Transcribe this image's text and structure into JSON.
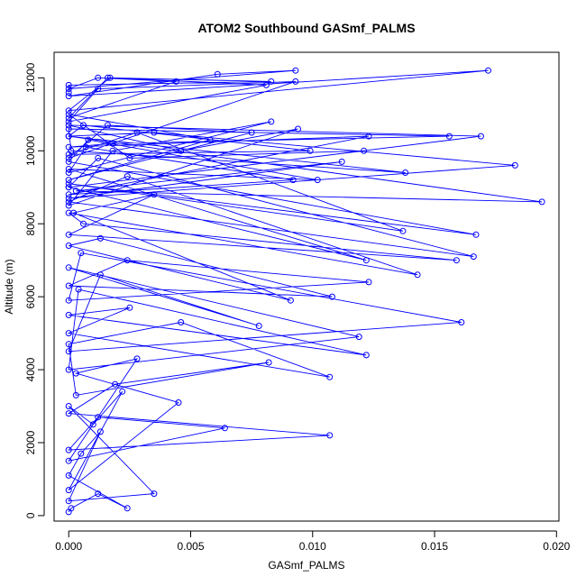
{
  "chart_data": {
    "type": "scatter",
    "title": "ATOM2 Southbound GASmf_PALMS",
    "xlabel": "GASmf_PALMS",
    "ylabel": "Altitude (m)",
    "xlim": [
      -0.0006,
      0.0201
    ],
    "ylim": [
      -150,
      12700
    ],
    "xticks": [
      0.0,
      0.005,
      0.01,
      0.015,
      0.02
    ],
    "xtick_labels": [
      "0.000",
      "0.005",
      "0.010",
      "0.015",
      "0.020"
    ],
    "yticks": [
      0,
      2000,
      4000,
      6000,
      8000,
      10000,
      12000
    ],
    "ytick_labels": [
      "0",
      "2000",
      "4000",
      "6000",
      "8000",
      "10000",
      "12000"
    ],
    "marker": "open-circle",
    "connected": true,
    "grid": false,
    "legend": "none",
    "colors": {
      "series": "#0000ff",
      "axes": "#000000",
      "background": "#ffffff"
    },
    "series": [
      {
        "x": [
          0.0,
          0.0001,
          0.0012,
          0.0024,
          0.0,
          0.0005,
          0.0013,
          0.0,
          0.0035,
          0.0,
          0.001,
          0.0022,
          0.0,
          0.0045,
          0.0003,
          0.0028,
          0.0,
          0.0064,
          0.0012,
          0.0,
          0.0107,
          0.0,
          0.0019,
          0.0082,
          0.0003,
          0.0,
          0.0046,
          0.0107,
          0.0,
          0.0025,
          0.0,
          0.0122,
          0.0004,
          0.0,
          0.0119,
          0.0,
          0.0078,
          0.0013,
          0.0,
          0.0161,
          0.0005,
          0.0,
          0.0123,
          0.0024,
          0.0,
          0.0108,
          0.0013,
          0.0,
          0.0091,
          0.0002,
          0.0035,
          0.0,
          0.0159,
          0.0006,
          0.0,
          0.0143,
          0.0024,
          0.0,
          0.0166,
          0.0012,
          0.0,
          0.0122,
          0.0,
          0.0102,
          0.0008,
          0.0,
          0.0167,
          0.0,
          0.0137,
          0.0028,
          0.0,
          0.0099,
          0.0006,
          0.0,
          0.0194,
          0.0003,
          0.0112,
          0.0,
          0.0183,
          0.0035,
          0.0,
          0.0138,
          0.0001,
          0.0,
          0.0156,
          0.0018,
          0.0,
          0.0123,
          0.0,
          0.0092,
          0.0007,
          0.0,
          0.0083,
          0.0018,
          0.0,
          0.0094,
          0.0046,
          0.0,
          0.0169,
          0.0,
          0.0121,
          0.0025,
          0.0,
          0.0058,
          0.0,
          0.0075,
          0.0016,
          0.0,
          0.0093,
          0.0012,
          0.0,
          0.0081,
          0.0017,
          0.0,
          0.0172,
          0.0,
          0.0061,
          0.0093,
          0.0,
          0.0012,
          0.0044,
          0.0,
          0.0016,
          0.0083,
          0.0,
          0.0
        ],
        "y": [
          100,
          200,
          600,
          200,
          1100,
          1700,
          2300,
          400,
          600,
          3000,
          2500,
          3400,
          700,
          3100,
          3900,
          4300,
          1500,
          2400,
          2700,
          1800,
          2200,
          2800,
          3600,
          4200,
          3300,
          4700,
          5300,
          3800,
          5000,
          5700,
          5500,
          4400,
          6200,
          4000,
          4900,
          6800,
          5200,
          6600,
          4500,
          5300,
          7200,
          5900,
          6400,
          7000,
          6300,
          6000,
          7600,
          7400,
          5900,
          8300,
          8800,
          7700,
          7000,
          8000,
          8300,
          6600,
          9300,
          8600,
          7100,
          9800,
          9000,
          7000,
          9500,
          9200,
          10300,
          9700,
          7700,
          9100,
          7800,
          10500,
          9900,
          10000,
          10700,
          10400,
          8600,
          8900,
          9700,
          8700,
          9600,
          10500,
          10400,
          9400,
          10000,
          10600,
          10400,
          10200,
          10100,
          10400,
          8800,
          9200,
          10100,
          9400,
          10800,
          10000,
          8500,
          10600,
          10000,
          10700,
          10400,
          9000,
          10000,
          9800,
          11000,
          10300,
          9200,
          10500,
          10700,
          9800,
          11900,
          11700,
          10800,
          11800,
          12000,
          11100,
          12200,
          11500,
          12100,
          12200,
          11700,
          12000,
          11900,
          10900,
          12000,
          11900,
          11800,
          11600
        ]
      }
    ]
  }
}
